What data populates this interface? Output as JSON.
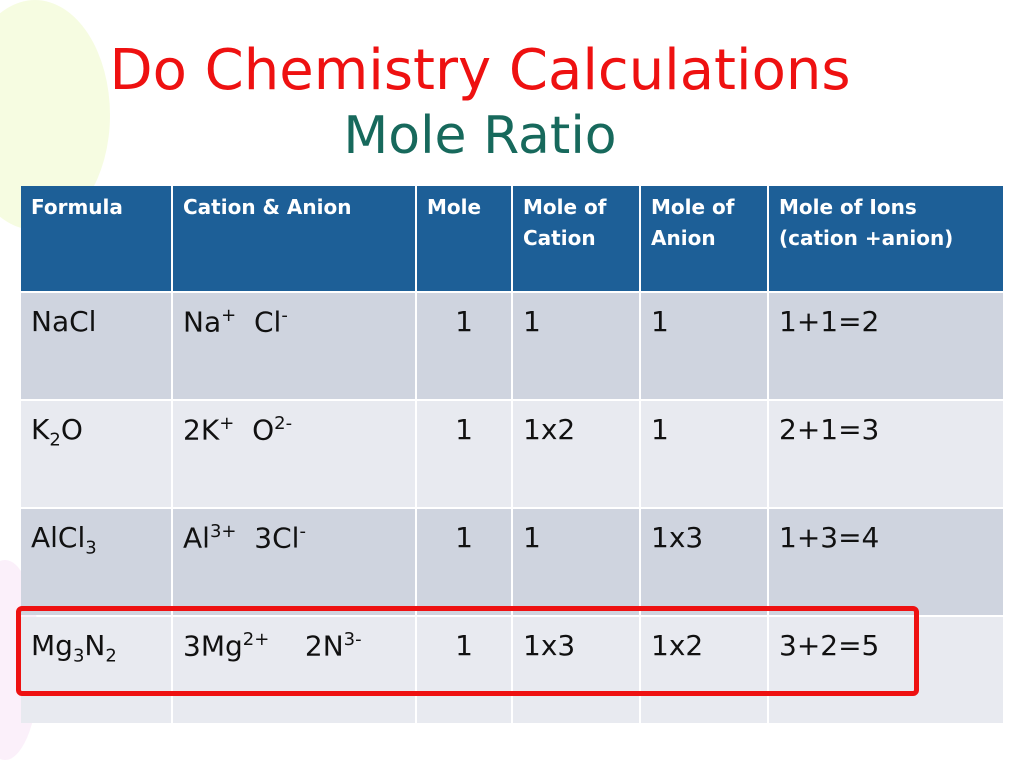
{
  "title": "Do Chemistry Calculations",
  "subtitle": "Mole Ratio",
  "table": {
    "header": [
      [
        "Formula"
      ],
      [
        "Cation & Anion"
      ],
      [
        "Mole"
      ],
      [
        "Mole of",
        "Cation"
      ],
      [
        "Mole of",
        "Anion"
      ],
      [
        "Mole of Ions",
        "(cation +anion)"
      ]
    ],
    "rows": [
      [
        [
          {
            "text": "NaCl"
          }
        ],
        [
          {
            "text": "Na"
          },
          {
            "text": "+",
            "script": "sup"
          },
          {
            "text": "  Cl"
          },
          {
            "text": "-",
            "script": "sup"
          }
        ],
        [
          {
            "text": "1"
          }
        ],
        [
          {
            "text": "1"
          }
        ],
        [
          {
            "text": "1"
          }
        ],
        [
          {
            "text": "1+1=2"
          }
        ]
      ],
      [
        [
          {
            "text": "K"
          },
          {
            "text": "2",
            "script": "sub"
          },
          {
            "text": "O"
          }
        ],
        [
          {
            "text": "2K"
          },
          {
            "text": "+",
            "script": "sup"
          },
          {
            "text": "  O"
          },
          {
            "text": "2-",
            "script": "sup"
          }
        ],
        [
          {
            "text": "1"
          }
        ],
        [
          {
            "text": "1x2"
          }
        ],
        [
          {
            "text": "1"
          }
        ],
        [
          {
            "text": "2+1=3"
          }
        ]
      ],
      [
        [
          {
            "text": "AlCl"
          },
          {
            "text": "3",
            "script": "sub"
          }
        ],
        [
          {
            "text": "Al"
          },
          {
            "text": "3+",
            "script": "sup"
          },
          {
            "text": "  3Cl"
          },
          {
            "text": "-",
            "script": "sup"
          }
        ],
        [
          {
            "text": "1"
          }
        ],
        [
          {
            "text": "1"
          }
        ],
        [
          {
            "text": "1x3"
          }
        ],
        [
          {
            "text": "1+3=4"
          }
        ]
      ],
      [
        [
          {
            "text": "Mg"
          },
          {
            "text": "3",
            "script": "sub"
          },
          {
            "text": "N"
          },
          {
            "text": "2",
            "script": "sub"
          }
        ],
        [
          {
            "text": "3Mg"
          },
          {
            "text": "2+",
            "script": "sup"
          },
          {
            "text": "    2N"
          },
          {
            "text": "3-",
            "script": "sup"
          }
        ],
        [
          {
            "text": "1"
          }
        ],
        [
          {
            "text": "1x3"
          }
        ],
        [
          {
            "text": "1x2"
          }
        ],
        [
          {
            "text": "3+2=5"
          }
        ]
      ]
    ]
  }
}
